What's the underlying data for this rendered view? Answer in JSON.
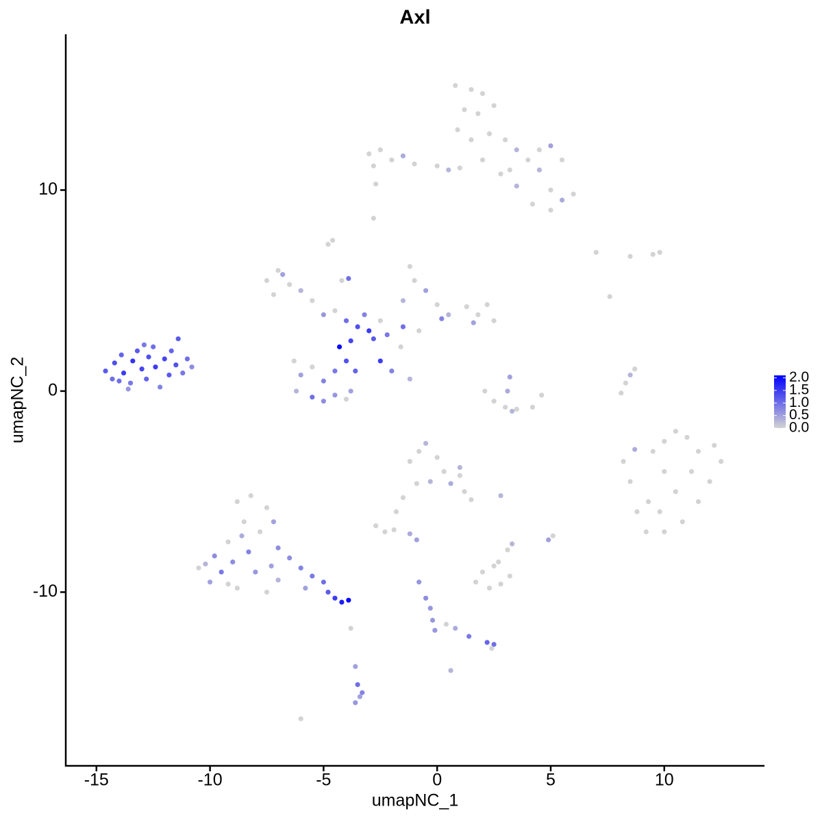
{
  "chart_data": {
    "type": "scatter",
    "title": "Axl",
    "x_label": "umapNC_1",
    "y_label": "umapNC_2",
    "xlim": [
      -16.35,
      14.41
    ],
    "ylim": [
      -18.64,
      17.75
    ],
    "xticks": [
      -15,
      -10,
      -5,
      0,
      5,
      10
    ],
    "yticks": [
      -10,
      0,
      10
    ],
    "color_low": "#d3d3d3",
    "color_high": "#0000ff",
    "clim": [
      0,
      2.1
    ],
    "colorbar_ticks": [
      {
        "value": 0,
        "label": "0.0"
      },
      {
        "value": 0.5,
        "label": "0.5"
      },
      {
        "value": 1,
        "label": "1.0"
      },
      {
        "value": 1.5,
        "label": "1.5"
      },
      {
        "value": 2,
        "label": "2.0"
      }
    ],
    "x": [
      -14.6,
      -14.3,
      -14.2,
      -13.9,
      -13.8,
      -13.5,
      -13.4,
      -13.2,
      -13.0,
      -12.8,
      -12.7,
      -12.5,
      -12.4,
      -12.2,
      -12.0,
      -11.8,
      -11.7,
      -11.5,
      -11.4,
      -11.2,
      -11.0,
      -10.8,
      -13.6,
      -14.0,
      -12.9,
      -7.5,
      -7.0,
      -6.5,
      -7.2,
      -6.0,
      -5.5,
      -6.8,
      -4.8,
      -4.6,
      -4.2,
      -3.9,
      -5.0,
      -4.5,
      -4.0,
      -3.5,
      -3.0,
      -2.8,
      -3.2,
      -2.5,
      -3.8,
      -4.3,
      -4.0,
      -3.6,
      -4.5,
      -5.0,
      -5.5,
      -6.0,
      -6.2,
      -5.5,
      -5.0,
      -4.5,
      -3.8,
      -6.3,
      -4.0,
      -1.5,
      -1.0,
      -1.2,
      -0.5,
      0.0,
      0.5,
      1.3,
      1.8,
      2.5,
      2.2,
      1.6,
      0.2,
      -0.8,
      -2.2,
      -1.5,
      -2.5,
      -2.0,
      -1.2,
      -1.6,
      -3.0,
      -2.5,
      -2.0,
      -2.8,
      -1.5,
      -1.0,
      0.0,
      0.5,
      1.0,
      -2.7,
      -2.8,
      0.8,
      1.5,
      2.0,
      1.2,
      0.9,
      1.8,
      2.5,
      1.5,
      2.3,
      3.0,
      3.5,
      4.0,
      4.5,
      5.0,
      5.5,
      4.5,
      3.5,
      5.0,
      5.5,
      6.0,
      5.0,
      4.2,
      2.8,
      2.0,
      3.2,
      7.0,
      8.5,
      9.5,
      9.8,
      7.6,
      2.1,
      2.5,
      3.0,
      3.5,
      4.2,
      4.6,
      3.2,
      3.1,
      3.3,
      8.1,
      8.3,
      8.5,
      8.7,
      8.2,
      8.5,
      8.8,
      9.2,
      9.5,
      10.0,
      10.5,
      11.0,
      11.5,
      12.2,
      12.5,
      12.0,
      11.5,
      10.8,
      10.0,
      9.3,
      10.0,
      10.5,
      11.2,
      9.8,
      8.7,
      -1.2,
      -0.8,
      -0.5,
      0.0,
      0.3,
      -0.3,
      0.6,
      1.0,
      1.2,
      1.5,
      -0.9,
      -1.5,
      -1.8,
      -2.7,
      -2.3,
      -1.9,
      2.8,
      1.0,
      -1.2,
      -0.9,
      3.3,
      3.1,
      4.9,
      5.1,
      1.7,
      2.0,
      2.5,
      2.8,
      3.2,
      2.3,
      2.7,
      -0.8,
      -0.5,
      -0.3,
      -0.2,
      -0.1,
      0.4,
      0.8,
      1.4,
      2.2,
      2.5,
      2.4,
      0.6,
      -10.5,
      -10.0,
      -9.8,
      -9.5,
      -9.2,
      -9.0,
      -8.8,
      -8.5,
      -8.3,
      -8.0,
      -8.8,
      -8.2,
      -7.5,
      -7.8,
      -7.2,
      -7.0,
      -7.3,
      -7.5,
      -7.0,
      -6.5,
      -6.0,
      -5.5,
      -5.0,
      -5.8,
      -4.8,
      -4.5,
      -4.2,
      -3.9,
      -9.2,
      -8.6,
      -10.2,
      -3.8,
      -3.6,
      -3.5,
      -3.3,
      -3.6,
      -3.4,
      -6.0
    ],
    "y": [
      1.0,
      0.6,
      1.4,
      1.8,
      0.9,
      0.4,
      1.5,
      2.0,
      1.1,
      0.6,
      1.7,
      2.2,
      1.2,
      0.2,
      1.6,
      0.8,
      2.0,
      1.3,
      2.6,
      0.9,
      1.6,
      1.2,
      0.1,
      0.5,
      2.3,
      5.5,
      6.0,
      5.3,
      4.8,
      5.0,
      4.5,
      5.8,
      7.3,
      7.5,
      5.5,
      5.6,
      3.8,
      4.0,
      3.5,
      3.2,
      3.0,
      2.6,
      3.8,
      3.5,
      2.5,
      2.2,
      1.5,
      1.0,
      1.0,
      0.5,
      1.2,
      0.8,
      0.0,
      -0.3,
      -0.5,
      -0.2,
      0.0,
      1.5,
      -0.4,
      4.5,
      5.5,
      6.2,
      5.0,
      4.3,
      3.8,
      4.2,
      3.8,
      3.5,
      4.3,
      3.4,
      3.6,
      3.0,
      2.8,
      3.2,
      1.5,
      1.0,
      0.6,
      2.2,
      11.8,
      12.0,
      11.5,
      11.2,
      11.7,
      11.3,
      11.2,
      11.0,
      11.1,
      10.3,
      8.6,
      15.2,
      15.0,
      14.8,
      14.0,
      13.0,
      13.8,
      14.2,
      12.5,
      12.8,
      12.5,
      12.0,
      11.5,
      12.0,
      12.2,
      11.5,
      11.0,
      10.2,
      10.0,
      9.5,
      9.8,
      9.0,
      9.3,
      10.8,
      11.5,
      11.0,
      6.9,
      6.7,
      6.8,
      6.9,
      4.7,
      0.0,
      -0.5,
      -0.8,
      -0.9,
      -0.8,
      -0.2,
      0.7,
      0.0,
      -1.0,
      -0.1,
      0.4,
      0.8,
      1.1,
      -3.5,
      -4.5,
      -6.0,
      -7.0,
      -3.0,
      -2.5,
      -2.0,
      -2.3,
      -3.0,
      -2.7,
      -3.5,
      -4.5,
      -5.5,
      -6.5,
      -7.0,
      -5.5,
      -4.0,
      -5.0,
      -4.0,
      -6.0,
      -2.9,
      -3.5,
      -3.0,
      -2.6,
      -3.3,
      -4.0,
      -4.5,
      -4.6,
      -4.2,
      -5.0,
      -5.4,
      -4.6,
      -5.3,
      -6.0,
      -6.7,
      -7.0,
      -6.9,
      -5.2,
      -3.8,
      -7.1,
      -7.4,
      -7.6,
      -7.9,
      -7.4,
      -7.2,
      -9.5,
      -9.0,
      -8.7,
      -9.6,
      -9.2,
      -9.8,
      -8.5,
      -9.5,
      -10.3,
      -10.8,
      -11.4,
      -11.9,
      -11.6,
      -11.8,
      -12.2,
      -12.5,
      -12.6,
      -12.8,
      -13.9,
      -8.8,
      -9.5,
      -8.2,
      -9.0,
      -7.5,
      -8.5,
      -9.8,
      -6.5,
      -8.0,
      -9.0,
      -5.5,
      -5.2,
      -5.8,
      -7.0,
      -6.5,
      -7.8,
      -8.7,
      -10.0,
      -9.4,
      -8.3,
      -8.8,
      -9.2,
      -9.5,
      -9.8,
      -10.0,
      -10.3,
      -10.5,
      -10.4,
      -9.6,
      -7.2,
      -8.6,
      -11.8,
      -13.7,
      -14.6,
      -15.0,
      -15.5,
      -15.2,
      -16.3
    ],
    "values": [
      1.2,
      1.0,
      1.3,
      1.1,
      1.5,
      0.9,
      1.6,
      1.2,
      1.4,
      1.1,
      1.3,
      1.0,
      1.5,
      0.8,
      1.4,
      1.2,
      1.1,
      1.3,
      1.2,
      0.9,
      1.0,
      0.7,
      0.6,
      1.0,
      0.9,
      0,
      0,
      0,
      0,
      0.3,
      0,
      0.5,
      0,
      0,
      0,
      1.0,
      0.6,
      0,
      1.0,
      1.3,
      1.5,
      1.2,
      0.8,
      0,
      1.4,
      2.0,
      1.3,
      1.1,
      0.9,
      0.8,
      0,
      0.5,
      0.3,
      1.0,
      0.7,
      0.6,
      0.5,
      0,
      0,
      0.3,
      0,
      0,
      0.5,
      0,
      0.3,
      0,
      0,
      0,
      0,
      0.5,
      0.8,
      0,
      0.9,
      1.0,
      1.5,
      0.8,
      0.3,
      0,
      0,
      0,
      0,
      0,
      0.4,
      0,
      0,
      0.3,
      0,
      0,
      0,
      0,
      0,
      0,
      0,
      0,
      0,
      0,
      0,
      0,
      0,
      0.3,
      0,
      0,
      0.5,
      0,
      0.3,
      0.3,
      0,
      0.4,
      0,
      0,
      0,
      0,
      0,
      0,
      0,
      0,
      0,
      0,
      0,
      0,
      0,
      0,
      0,
      0,
      0,
      0.5,
      0.4,
      0.3,
      0,
      0,
      0.3,
      0,
      0,
      0,
      0,
      0,
      0,
      0,
      0,
      0,
      0,
      0,
      0,
      0,
      0,
      0,
      0,
      0,
      0,
      0,
      0,
      0,
      0.4,
      0,
      0,
      0.3,
      0,
      0,
      0.3,
      0.4,
      0,
      0,
      0,
      0,
      0,
      0,
      0,
      0,
      0,
      0.3,
      0.3,
      0.4,
      0.5,
      0.3,
      0,
      0.5,
      0,
      0,
      0,
      0,
      0,
      0,
      0,
      0,
      0.6,
      0.7,
      0.6,
      0.6,
      0.6,
      0,
      0.4,
      0.9,
      1.1,
      1.0,
      0,
      0.3,
      0,
      0.5,
      0.7,
      0.9,
      0,
      0.7,
      0,
      0,
      0.8,
      0.6,
      0,
      0,
      0,
      0,
      0.5,
      0.7,
      0.5,
      0,
      0.3,
      0.7,
      0.8,
      0.9,
      1.0,
      0.5,
      1.2,
      1.5,
      1.8,
      2.0,
      0,
      0.4,
      0.3,
      0,
      0.5,
      1.0,
      0.8,
      0.6,
      0.5,
      0
    ]
  }
}
